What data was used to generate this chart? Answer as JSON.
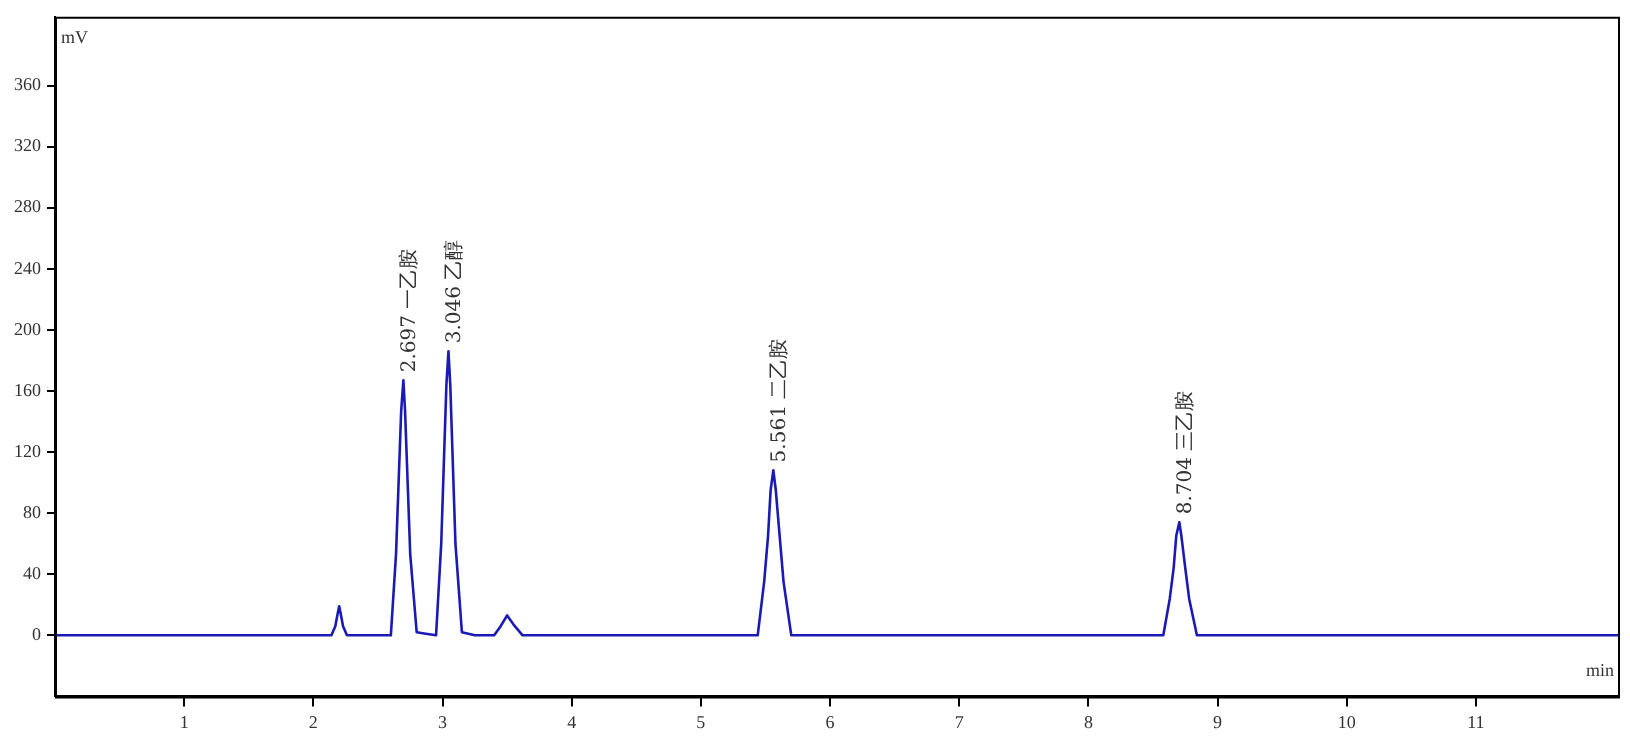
{
  "chart_data": {
    "type": "line",
    "xlabel": "min",
    "ylabel": "mV",
    "x": [
      0,
      2.14,
      2.17,
      2.19,
      2.2,
      2.21,
      2.23,
      2.26,
      2.6,
      2.64,
      2.66,
      2.68,
      2.697,
      2.71,
      2.73,
      2.75,
      2.8,
      2.87,
      2.95,
      2.99,
      3.01,
      3.03,
      3.046,
      3.06,
      3.08,
      3.1,
      3.15,
      3.25,
      3.4,
      3.45,
      3.5,
      3.55,
      3.62,
      5.44,
      5.49,
      5.52,
      5.54,
      5.561,
      5.58,
      5.61,
      5.64,
      5.7,
      8.58,
      8.63,
      8.66,
      8.68,
      8.704,
      8.72,
      8.75,
      8.78,
      8.84,
      12.1
    ],
    "series": [
      {
        "color": "#1a1ab4",
        "values": [
          0,
          0,
          6,
          15,
          19,
          15,
          6,
          0,
          0,
          53,
          100,
          147,
          167,
          147,
          100,
          53,
          2,
          1,
          0,
          60,
          112,
          164,
          186,
          164,
          112,
          60,
          2,
          0,
          0,
          6,
          13,
          7,
          0,
          0,
          35,
          65,
          95,
          108,
          95,
          65,
          35,
          0,
          0,
          24,
          44,
          65,
          74,
          65,
          44,
          24,
          0,
          0
        ]
      }
    ],
    "xlim": [
      0,
      12.1
    ],
    "xticks": [
      1,
      2,
      3,
      4,
      5,
      6,
      7,
      8,
      9,
      10,
      11
    ],
    "ylim": [
      -40,
      405
    ],
    "yticks": [
      0,
      40,
      80,
      120,
      160,
      200,
      240,
      280,
      320,
      360
    ],
    "annotations": [
      {
        "text": "2.697 一乙胺",
        "x": 2.697,
        "y": 167
      },
      {
        "text": "3.046 乙醇",
        "x": 3.046,
        "y": 186
      },
      {
        "text": "5.561 二乙胺",
        "x": 5.561,
        "y": 108
      },
      {
        "text": "8.704 三乙胺",
        "x": 8.704,
        "y": 74
      }
    ],
    "grid": false,
    "legend": false,
    "marker": "none",
    "line_style": "solid"
  }
}
